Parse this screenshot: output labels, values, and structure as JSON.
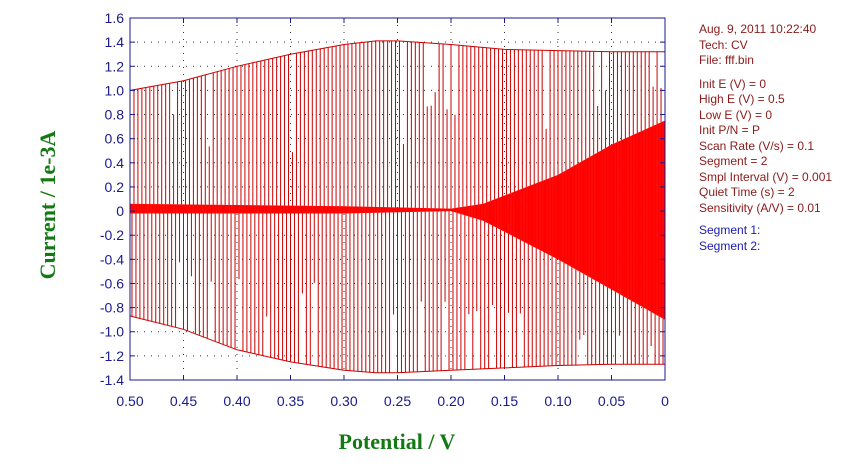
{
  "chart_data": {
    "type": "line",
    "xlabel": "Potential / V",
    "ylabel": "Current / 1e-3A",
    "xlim": [
      0.5,
      0
    ],
    "x_inverted": true,
    "ylim": [
      -1.4,
      1.6
    ],
    "x_ticks": [
      "0.50",
      "0.45",
      "0.40",
      "0.35",
      "0.30",
      "0.25",
      "0.20",
      "0.15",
      "0.10",
      "0.05",
      "0"
    ],
    "y_ticks": [
      "1.6",
      "1.4",
      "1.2",
      "1.0",
      "0.8",
      "0.6",
      "0.4",
      "0.2",
      "0",
      "-0.2",
      "-0.4",
      "-0.6",
      "-0.8",
      "-1.0",
      "-1.2",
      "-1.4"
    ],
    "grid": "dotted",
    "series_color": "#cc0000",
    "noise_color": "#ff0000",
    "series": [
      {
        "x": [
          0.5,
          0.45,
          0.4,
          0.35,
          0.3,
          0.27,
          0.25,
          0.2,
          0.15,
          0.1,
          0.05,
          0.0
        ],
        "y": [
          1.0,
          1.08,
          1.2,
          1.3,
          1.38,
          1.41,
          1.41,
          1.38,
          1.34,
          1.33,
          1.32,
          1.32
        ]
      },
      {
        "x": [
          0.5,
          0.45,
          0.4,
          0.35,
          0.3,
          0.27,
          0.25,
          0.2,
          0.15,
          0.1,
          0.05,
          0.0
        ],
        "y": [
          -0.87,
          -0.98,
          -1.15,
          -1.25,
          -1.32,
          -1.34,
          -1.34,
          -1.32,
          -1.3,
          -1.28,
          -1.27,
          -1.27
        ]
      },
      {
        "x": [
          0.5,
          0.4,
          0.3,
          0.2,
          0.17,
          0.1,
          0.05,
          0.0
        ],
        "y": [
          0.06,
          0.05,
          0.04,
          0.02,
          0.06,
          0.3,
          0.55,
          0.75
        ]
      },
      {
        "x": [
          0.5,
          0.4,
          0.3,
          0.2,
          0.17,
          0.1,
          0.05,
          0.0
        ],
        "y": [
          -0.02,
          -0.02,
          -0.02,
          0.0,
          -0.08,
          -0.4,
          -0.65,
          -0.9
        ]
      }
    ]
  },
  "info": {
    "lines_a": [
      "Aug. 9, 2011    10:22:40",
      "Tech: CV",
      "File: fff.bin"
    ],
    "lines_b": [
      "Init E (V) = 0",
      "High E (V) = 0.5",
      "Low E (V) = 0",
      "Init P/N = P",
      "Scan Rate (V/s) = 0.1",
      "Segment = 2",
      "Smpl Interval (V) = 0.001",
      "Quiet Time (s) = 2",
      "Sensitivity (A/V) = 0.01"
    ],
    "segments": [
      "Segment 1:",
      "Segment 2:"
    ]
  }
}
